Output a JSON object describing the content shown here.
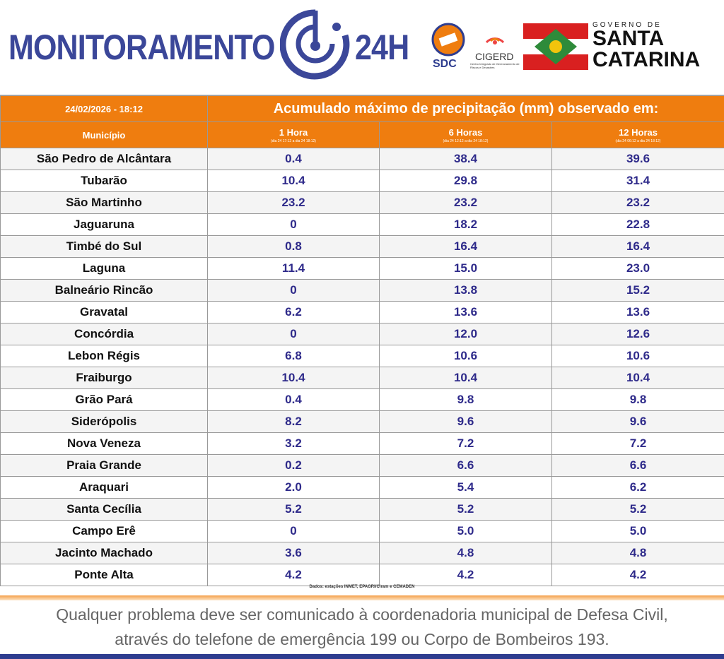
{
  "header": {
    "title_left": "MONITORAMENTO",
    "title_right": "24H",
    "sdc": "SDC",
    "cigerd": "CIGERD",
    "cigerd_sub": "Centro Integrado de Gerenciamento de Riscos e Desastres",
    "gov": "GOVERNO DE",
    "state_1": "SANTA",
    "state_2": "CATARINA"
  },
  "table": {
    "date": "24/02/2026 - 18:12",
    "caption": "Acumulado máximo de precipitação (mm) observado em:",
    "columns": [
      {
        "label": "Município"
      },
      {
        "label": "1 Hora",
        "sub": "(dia 24 17:12 a dia 24 18:12)"
      },
      {
        "label": "6 Horas",
        "sub": "(dia 24 12:12 a dia 24 18:12)"
      },
      {
        "label": "12 Horas",
        "sub": "(dia 24 06:12 a dia 24 18:12)"
      }
    ],
    "rows": [
      [
        "São Pedro de Alcântara",
        "0.4",
        "38.4",
        "39.6"
      ],
      [
        "Tubarão",
        "10.4",
        "29.8",
        "31.4"
      ],
      [
        "São Martinho",
        "23.2",
        "23.2",
        "23.2"
      ],
      [
        "Jaguaruna",
        "0",
        "18.2",
        "22.8"
      ],
      [
        "Timbé do Sul",
        "0.8",
        "16.4",
        "16.4"
      ],
      [
        "Laguna",
        "11.4",
        "15.0",
        "23.0"
      ],
      [
        "Balneário Rincão",
        "0",
        "13.8",
        "15.2"
      ],
      [
        "Gravatal",
        "6.2",
        "13.6",
        "13.6"
      ],
      [
        "Concórdia",
        "0",
        "12.0",
        "12.6"
      ],
      [
        "Lebon Régis",
        "6.8",
        "10.6",
        "10.6"
      ],
      [
        "Fraiburgo",
        "10.4",
        "10.4",
        "10.4"
      ],
      [
        "Grão Pará",
        "0.4",
        "9.8",
        "9.8"
      ],
      [
        "Siderópolis",
        "8.2",
        "9.6",
        "9.6"
      ],
      [
        "Nova Veneza",
        "3.2",
        "7.2",
        "7.2"
      ],
      [
        "Praia Grande",
        "0.2",
        "6.6",
        "6.6"
      ],
      [
        "Araquari",
        "2.0",
        "5.4",
        "6.2"
      ],
      [
        "Santa Cecília",
        "5.2",
        "5.2",
        "5.2"
      ],
      [
        "Campo Erê",
        "0",
        "5.0",
        "5.0"
      ],
      [
        "Jacinto Machado",
        "3.6",
        "4.8",
        "4.8"
      ],
      [
        "Ponte Alta",
        "4.2",
        "4.2",
        "4.2"
      ]
    ]
  },
  "source": "Dados: estações INMET, EPAGRI/Ciram e CEMADEN",
  "footer": {
    "line_1": "Qualquer problema deve ser comunicado à coordenadoria municipal de Defesa Civil,",
    "line_2": "através do telefone de emergência 199 ou Corpo de Bombeiros 193."
  }
}
